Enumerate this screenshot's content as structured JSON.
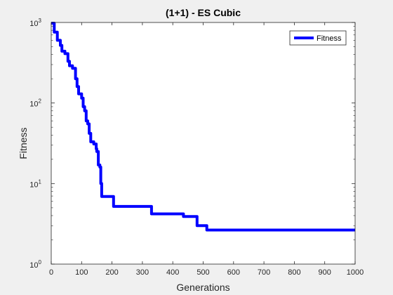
{
  "chart_data": {
    "type": "line",
    "title": "(1+1) - ES Cubic",
    "xlabel": "Generations",
    "ylabel": "Fitness",
    "xlim": [
      0,
      1000
    ],
    "ylim": [
      1,
      1000
    ],
    "yscale": "log",
    "xticks": [
      0,
      100,
      200,
      300,
      400,
      500,
      600,
      700,
      800,
      900,
      1000
    ],
    "yticks": [
      {
        "base": "10",
        "exp": "0",
        "value": 1
      },
      {
        "base": "10",
        "exp": "1",
        "value": 10
      },
      {
        "base": "10",
        "exp": "2",
        "value": 100
      },
      {
        "base": "10",
        "exp": "3",
        "value": 1000
      }
    ],
    "grid": false,
    "legend_position": "top-right",
    "series": [
      {
        "name": "Fitness",
        "color": "#0000ff",
        "points": [
          [
            0,
            980
          ],
          [
            10,
            760
          ],
          [
            20,
            600
          ],
          [
            30,
            520
          ],
          [
            35,
            440
          ],
          [
            45,
            410
          ],
          [
            55,
            330
          ],
          [
            60,
            290
          ],
          [
            70,
            270
          ],
          [
            80,
            200
          ],
          [
            85,
            160
          ],
          [
            90,
            130
          ],
          [
            100,
            115
          ],
          [
            105,
            90
          ],
          [
            110,
            80
          ],
          [
            115,
            60
          ],
          [
            120,
            55
          ],
          [
            125,
            42
          ],
          [
            130,
            33
          ],
          [
            140,
            31
          ],
          [
            148,
            27
          ],
          [
            150,
            25
          ],
          [
            155,
            17
          ],
          [
            160,
            16
          ],
          [
            163,
            10
          ],
          [
            166,
            6.9
          ],
          [
            170,
            6.9
          ],
          [
            205,
            5.2
          ],
          [
            325,
            5.2
          ],
          [
            330,
            4.2
          ],
          [
            430,
            4.2
          ],
          [
            435,
            3.9
          ],
          [
            475,
            3.9
          ],
          [
            480,
            3.0
          ],
          [
            510,
            3.0
          ],
          [
            512,
            2.65
          ],
          [
            1000,
            2.65
          ]
        ]
      }
    ]
  }
}
